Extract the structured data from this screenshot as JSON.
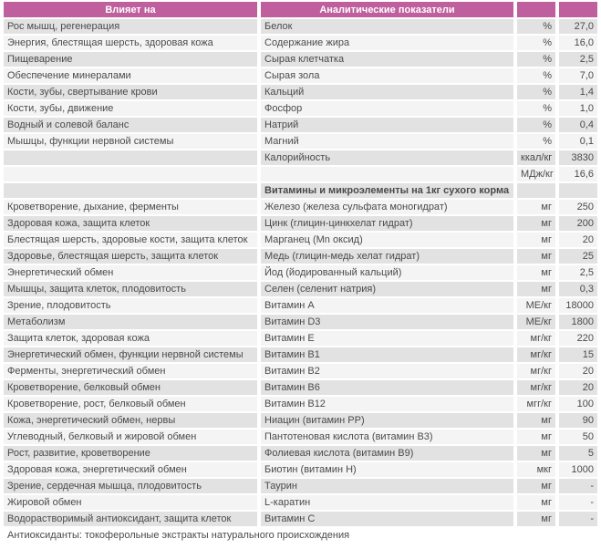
{
  "colors": {
    "header_bg": "#bf5f9e",
    "header_text": "#ffffff",
    "row_odd_bg": "#e2e2e2",
    "row_even_bg": "#f4f4f4",
    "text": "#4a4a4a",
    "page_bg": "#ffffff"
  },
  "table": {
    "header": {
      "influences": "Влияет на",
      "indicators": "Аналитические показатели",
      "unit": "",
      "value": ""
    },
    "rows": [
      {
        "influences": "Рос мышц, регенерация",
        "indicator": "Белок",
        "unit": "%",
        "value": "27,0"
      },
      {
        "influences": "Энергия, блестящая шерсть, здоровая кожа",
        "indicator": "Содержание жира",
        "unit": "%",
        "value": "16,0"
      },
      {
        "influences": "Пищеварение",
        "indicator": "Сырая клетчатка",
        "unit": "%",
        "value": "2,5"
      },
      {
        "influences": "Обеспечение минералами",
        "indicator": "Сырая зола",
        "unit": "%",
        "value": "7,0"
      },
      {
        "influences": "Кости, зубы, свертывание крови",
        "indicator": "Кальций",
        "unit": "%",
        "value": "1,4"
      },
      {
        "influences": "Кости, зубы, движение",
        "indicator": "Фосфор",
        "unit": "%",
        "value": "1,0"
      },
      {
        "influences": "Водный и солевой баланс",
        "indicator": "Натрий",
        "unit": "%",
        "value": "0,4"
      },
      {
        "influences": "Мышцы, функции нервной системы",
        "indicator": "Магний",
        "unit": "%",
        "value": "0,1"
      },
      {
        "influences": "",
        "indicator": "Калорийность",
        "unit": "ккал/кг",
        "value": "3830"
      },
      {
        "influences": "",
        "indicator": "",
        "unit": "МДж/кг",
        "value": "16,6"
      },
      {
        "influences": "",
        "indicator": "Витамины и микроэлементы на 1кг сухого корма",
        "unit": "",
        "value": "",
        "section": true
      },
      {
        "influences": "Кроветворение, дыхание, ферменты",
        "indicator": "Железо (железа сульфата моногидрат)",
        "unit": "мг",
        "value": "250"
      },
      {
        "influences": "Здоровая кожа, защита клеток",
        "indicator": "Цинк (глицин-цинкхелат гидрат)",
        "unit": "мг",
        "value": "200"
      },
      {
        "influences": "Блестящая шерсть, здоровые кости, защита клеток",
        "indicator": "Марганец (Mn оксид)",
        "unit": "мг",
        "value": "20"
      },
      {
        "influences": "Здоровье, блестящая шерсть, защита клеток",
        "indicator": "Медь (глицин-медь хелат гидрат)",
        "unit": "мг",
        "value": "25"
      },
      {
        "influences": "Энергетический обмен",
        "indicator": "Йод (йодированный кальций)",
        "unit": "мг",
        "value": "2,5"
      },
      {
        "influences": "Мышцы, защита клеток, плодовитость",
        "indicator": "Селен (селенит натрия)",
        "unit": "мг",
        "value": "0,3"
      },
      {
        "influences": "Зрение, плодовитость",
        "indicator": "Витамин А",
        "unit": "МЕ/кг",
        "value": "18000"
      },
      {
        "influences": "Метаболизм",
        "indicator": "Витамин D3",
        "unit": "МЕ/кг",
        "value": "1800"
      },
      {
        "influences": "Защита клеток, здоровая кожа",
        "indicator": "Витамин Е",
        "unit": "мг/кг",
        "value": "220"
      },
      {
        "influences": "Энергетический обмен, функции нервной системы",
        "indicator": "Витамин В1",
        "unit": "мг/кг",
        "value": "15"
      },
      {
        "influences": "Ферменты, энергетический обмен",
        "indicator": "Витамин В2",
        "unit": "мг/кг",
        "value": "20"
      },
      {
        "influences": "Кроветворение, белковый обмен",
        "indicator": "Витамин В6",
        "unit": "мг/кг",
        "value": "20"
      },
      {
        "influences": "Кроветворение, рост, белковый обмен",
        "indicator": "Витамин В12",
        "unit": "мгг/кг",
        "value": "100"
      },
      {
        "influences": "Кожа, энергетический обмен, нервы",
        "indicator": "Ниацин (витамин РР)",
        "unit": "мг",
        "value": "90"
      },
      {
        "influences": "Углеводный, белковый и жировой обмен",
        "indicator": "Пантотеновая кислота (витамин В3)",
        "unit": "мг",
        "value": "50"
      },
      {
        "influences": "Рост, развитие, кроветворение",
        "indicator": "Фолиевая кислота (витамин В9)",
        "unit": "мг",
        "value": "5"
      },
      {
        "influences": "Здоровая кожа, энергетический обмен",
        "indicator": "Биотин (витамин Н)",
        "unit": "мкг",
        "value": "1000"
      },
      {
        "influences": "Зрение, сердечная мышца, плодовитость",
        "indicator": "Таурин",
        "unit": "мг",
        "value": "-"
      },
      {
        "influences": "Жировой обмен",
        "indicator": "L-каратин",
        "unit": "мг",
        "value": "-"
      },
      {
        "influences": "Водорастворимый антиоксидант, защита клеток",
        "indicator": "Витамин С",
        "unit": "мг",
        "value": "-"
      }
    ],
    "footer": "Антиоксиданты: токоферольные экстракты натурального происхождения"
  }
}
